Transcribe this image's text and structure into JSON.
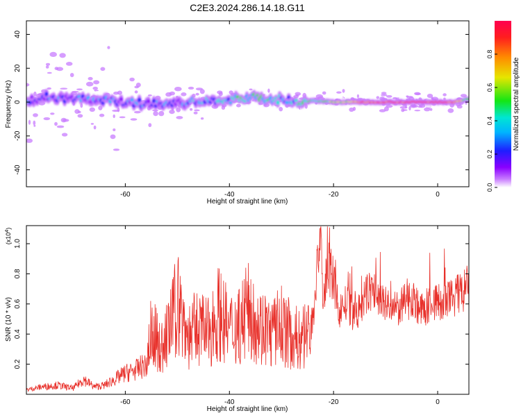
{
  "page_title": "C2E3.2024.286.14.18.G11",
  "colors": {
    "snr_line": "#e8302a",
    "colorbar_stops": [
      "#ffffff",
      "#c87cff",
      "#8a00ff",
      "#1e1eff",
      "#00b4ff",
      "#00e6d2",
      "#14e614",
      "#e6e600",
      "#ff8c00",
      "#ff1e1e",
      "#ff0050"
    ]
  },
  "chart_data": [
    {
      "type": "heatmap",
      "title": "C2E3.2024.286.14.18.G11",
      "xlabel": "Height of straight line (km)",
      "ylabel": "Frequency (Hz)",
      "xlim": [
        -79,
        6
      ],
      "ylim": [
        -50,
        48
      ],
      "x_ticks": [
        "-60",
        "-40",
        "-20",
        "0"
      ],
      "y_ticks": [
        "40",
        "20",
        "0",
        "-20",
        "-40"
      ],
      "colorbar_label": "Normalized spectral amplitude",
      "colorbar_range": [
        0,
        1
      ],
      "colorbar_ticks": [
        "0.0",
        "0.2",
        "0.4",
        "0.6",
        "0.8"
      ],
      "signal_track": {
        "x": [
          -79,
          -75,
          -70,
          -65,
          -60,
          -55,
          -50,
          -45,
          -40,
          -36,
          -32,
          -28,
          -26,
          -24,
          -20,
          -16,
          -12,
          -8,
          -4,
          0,
          3,
          5,
          6
        ],
        "frequency": [
          1,
          3,
          2,
          1,
          0,
          -1,
          -1,
          1,
          1,
          3,
          2,
          1,
          -1,
          1,
          0,
          0,
          0,
          0,
          0,
          0,
          0,
          1,
          2
        ],
        "amplitude": [
          0.25,
          0.3,
          0.25,
          0.3,
          0.3,
          0.3,
          0.3,
          0.35,
          0.45,
          0.5,
          0.45,
          0.4,
          0.5,
          0.55,
          0.6,
          0.75,
          0.9,
          0.95,
          0.95,
          0.95,
          0.9,
          0.7,
          0.5
        ]
      }
    },
    {
      "type": "line",
      "xlabel": "Height of straight line (km)",
      "ylabel": "SNR (10 * v/v)",
      "y_multiplier": "(x10^4)",
      "xlim": [
        -79,
        6
      ],
      "ylim": [
        0,
        1.12
      ],
      "x_ticks": [
        "-60",
        "-40",
        "-20",
        "0"
      ],
      "y_ticks": [
        "0.2",
        "0.4",
        "0.6",
        "0.8",
        "1.0"
      ],
      "series": [
        {
          "x": [
            -79,
            -76,
            -73,
            -70,
            -68,
            -66,
            -64,
            -62,
            -60,
            -58,
            -56,
            -55,
            -53,
            -51,
            -50,
            -48,
            -46,
            -44,
            -42,
            -40,
            -38,
            -36,
            -34,
            -32,
            -30,
            -28,
            -26,
            -24,
            -22.5,
            -22,
            -21,
            -20,
            -19,
            -18,
            -17,
            -16,
            -15,
            -13,
            -11,
            -9,
            -7,
            -5,
            -3,
            -1,
            1,
            3,
            5,
            6
          ],
          "y": [
            0.03,
            0.05,
            0.06,
            0.04,
            0.1,
            0.05,
            0.06,
            0.1,
            0.14,
            0.16,
            0.2,
            0.42,
            0.3,
            0.48,
            0.62,
            0.38,
            0.45,
            0.4,
            0.55,
            0.42,
            0.48,
            0.56,
            0.45,
            0.4,
            0.46,
            0.38,
            0.36,
            0.48,
            1.1,
            0.62,
            0.84,
            0.75,
            0.55,
            0.6,
            0.58,
            0.5,
            0.56,
            0.7,
            0.63,
            0.55,
            0.58,
            0.65,
            0.55,
            0.62,
            0.6,
            0.65,
            0.68,
            0.72
          ]
        }
      ]
    }
  ]
}
